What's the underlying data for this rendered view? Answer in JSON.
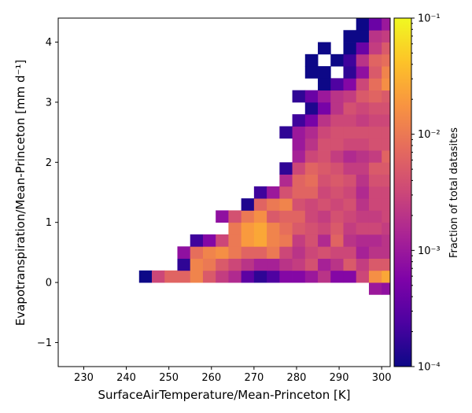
{
  "chart_data": {
    "type": "heatmap",
    "xlabel": "SurfaceAirTemperature/Mean-Princeton [K]",
    "ylabel": "Evapotranspiration/Mean-Princeton [mm d⁻¹]",
    "xlim": [
      224,
      302
    ],
    "ylim": [
      -1.4,
      4.4
    ],
    "x_ticks": [
      230,
      240,
      250,
      260,
      270,
      280,
      290,
      300
    ],
    "y_ticks": [
      -1,
      0,
      1,
      2,
      3,
      4
    ],
    "x_tick_labels": [
      "230",
      "240",
      "250",
      "260",
      "270",
      "280",
      "290",
      "300"
    ],
    "y_tick_labels": [
      "−1",
      "0",
      "1",
      "2",
      "3",
      "4"
    ],
    "bin_x_start": 243,
    "bin_width": 3,
    "bin_height": 0.2,
    "colormap": "plasma",
    "color_scale": "log",
    "colorbar": {
      "label": "Fraction of total datasites",
      "range": [
        0.0001,
        0.1
      ],
      "tick_labels": [
        "10⁻⁴",
        "10⁻³",
        "10⁻²",
        "10⁻¹"
      ]
    },
    "cells_log10": [
      {
        "y0": -0.2,
        "values": [
          null,
          null,
          null,
          null,
          null,
          null,
          null,
          null,
          null,
          null,
          null,
          null,
          null,
          null,
          null,
          null,
          null,
          null,
          -3.0,
          -3.1
        ]
      },
      {
        "y0": 0.0,
        "values": [
          -4.0,
          -2.5,
          -2.2,
          -2.2,
          -1.9,
          -2.3,
          -2.6,
          -2.8,
          -3.5,
          -3.8,
          -3.6,
          -3.2,
          -3.2,
          -3.0,
          -2.7,
          -3.2,
          -3.2,
          -2.5,
          -1.8,
          -1.6
        ]
      },
      {
        "y0": 0.2,
        "values": [
          null,
          null,
          null,
          -3.8,
          -1.9,
          -2.0,
          -2.3,
          -2.5,
          -2.7,
          -2.9,
          -2.9,
          -2.7,
          -2.6,
          -2.4,
          -2.9,
          -2.7,
          -2.3,
          -2.6,
          -2.3,
          -2.3
        ]
      },
      {
        "y0": 0.4,
        "values": [
          null,
          null,
          null,
          -3.1,
          -2.1,
          -1.9,
          -1.8,
          -2.0,
          -2.2,
          -2.2,
          -2.0,
          -2.5,
          -2.7,
          -2.5,
          -2.4,
          -2.5,
          -2.5,
          -2.9,
          -2.7,
          -2.7
        ]
      },
      {
        "y0": 0.6,
        "values": [
          null,
          null,
          null,
          null,
          -3.7,
          -3.2,
          -2.5,
          -2.0,
          -1.7,
          -1.6,
          -1.9,
          -2.0,
          -2.6,
          -2.4,
          -2.8,
          -2.2,
          -2.7,
          -2.8,
          -2.8,
          -2.7
        ]
      },
      {
        "y0": 0.8,
        "values": [
          null,
          null,
          null,
          null,
          null,
          null,
          null,
          -2.0,
          -1.7,
          -1.6,
          -1.9,
          -2.1,
          -2.3,
          -2.4,
          -2.5,
          -2.3,
          -2.6,
          -2.5,
          -2.5,
          -2.6
        ]
      },
      {
        "y0": 1.0,
        "values": [
          null,
          null,
          null,
          null,
          null,
          null,
          -3.1,
          -2.4,
          -2.0,
          -1.8,
          -2.3,
          -2.2,
          -2.2,
          -2.5,
          -2.6,
          -2.4,
          -2.5,
          -2.6,
          -2.6,
          -2.5
        ]
      },
      {
        "y0": 1.2,
        "values": [
          null,
          null,
          null,
          null,
          null,
          null,
          null,
          null,
          -3.9,
          -2.2,
          -2.0,
          -1.9,
          -2.4,
          -2.5,
          -2.4,
          -2.5,
          -2.4,
          -2.7,
          -2.5,
          -2.5
        ]
      },
      {
        "y0": 1.4,
        "values": [
          null,
          null,
          null,
          null,
          null,
          null,
          null,
          null,
          null,
          -3.7,
          -3.0,
          -2.4,
          -2.2,
          -2.2,
          -2.5,
          -2.4,
          -2.5,
          -2.8,
          -2.5,
          -2.5
        ]
      },
      {
        "y0": 1.6,
        "values": [
          null,
          null,
          null,
          null,
          null,
          null,
          null,
          null,
          null,
          null,
          null,
          -2.8,
          -2.2,
          -2.1,
          -2.4,
          -2.3,
          -2.4,
          -2.7,
          -2.4,
          -2.4
        ]
      },
      {
        "y0": 1.8,
        "values": [
          null,
          null,
          null,
          null,
          null,
          null,
          null,
          null,
          null,
          null,
          null,
          -3.8,
          -2.5,
          -2.2,
          -2.3,
          -2.4,
          -2.6,
          -2.6,
          -2.3,
          -2.3
        ]
      },
      {
        "y0": 2.0,
        "values": [
          null,
          null,
          null,
          null,
          null,
          null,
          null,
          null,
          null,
          null,
          null,
          null,
          -2.9,
          -2.5,
          -2.4,
          -2.6,
          -2.8,
          -2.7,
          -2.6,
          -2.2
        ]
      },
      {
        "y0": 2.2,
        "values": [
          null,
          null,
          null,
          null,
          null,
          null,
          null,
          null,
          null,
          null,
          null,
          null,
          -3.0,
          -2.7,
          -2.4,
          -2.4,
          -2.5,
          -2.5,
          -2.4,
          -2.4
        ]
      },
      {
        "y0": 2.4,
        "values": [
          null,
          null,
          null,
          null,
          null,
          null,
          null,
          null,
          null,
          null,
          null,
          -3.8,
          -3.0,
          -2.8,
          -2.5,
          -2.4,
          -2.4,
          -2.4,
          -2.4,
          -2.4
        ]
      },
      {
        "y0": 2.6,
        "values": [
          null,
          null,
          null,
          null,
          null,
          null,
          null,
          null,
          null,
          null,
          null,
          null,
          -3.7,
          -3.3,
          -2.7,
          -2.5,
          -2.5,
          -2.6,
          -2.5,
          -2.5
        ]
      },
      {
        "y0": 2.8,
        "values": [
          null,
          null,
          null,
          null,
          null,
          null,
          null,
          null,
          null,
          null,
          null,
          null,
          null,
          -3.9,
          -3.3,
          -2.7,
          -2.4,
          -2.5,
          -2.4,
          -2.4
        ]
      },
      {
        "y0": 3.0,
        "values": [
          null,
          null,
          null,
          null,
          null,
          null,
          null,
          null,
          null,
          null,
          null,
          null,
          -3.8,
          -3.4,
          -3.0,
          -2.7,
          -2.6,
          -2.3,
          -2.2,
          -2.3
        ]
      },
      {
        "y0": 3.2,
        "values": [
          null,
          null,
          null,
          null,
          null,
          null,
          null,
          null,
          null,
          null,
          null,
          null,
          null,
          null,
          -4.0,
          -3.6,
          -3.2,
          -2.5,
          -2.1,
          -1.8
        ]
      },
      {
        "y0": 3.4,
        "values": [
          null,
          null,
          null,
          null,
          null,
          null,
          null,
          null,
          null,
          null,
          null,
          null,
          null,
          -4.0,
          -4.0,
          null,
          -3.8,
          -3.1,
          -2.3,
          -1.9
        ]
      },
      {
        "y0": 3.6,
        "values": [
          null,
          null,
          null,
          null,
          null,
          null,
          null,
          null,
          null,
          null,
          null,
          null,
          null,
          -4.0,
          null,
          -4.0,
          -3.7,
          -2.7,
          -2.2,
          -2.1
        ]
      },
      {
        "y0": 3.8,
        "values": [
          null,
          null,
          null,
          null,
          null,
          null,
          null,
          null,
          null,
          null,
          null,
          null,
          null,
          null,
          -4.0,
          null,
          -4.0,
          -3.4,
          -2.6,
          -2.3
        ]
      },
      {
        "y0": 4.0,
        "values": [
          null,
          null,
          null,
          null,
          null,
          null,
          null,
          null,
          null,
          null,
          null,
          null,
          null,
          null,
          null,
          null,
          -4.0,
          -4.0,
          -2.7,
          -2.6
        ]
      },
      {
        "y0": 4.2,
        "values": [
          null,
          null,
          null,
          null,
          null,
          null,
          null,
          null,
          null,
          null,
          null,
          null,
          null,
          null,
          null,
          null,
          null,
          -4.0,
          -3.4,
          -3.0
        ]
      },
      {
        "y0": 4.4,
        "values": [
          null,
          null,
          null,
          null,
          null,
          null,
          null,
          null,
          null,
          null,
          null,
          null,
          null,
          null,
          null,
          null,
          null,
          -4.0,
          -3.4,
          -2.9
        ]
      }
    ]
  }
}
